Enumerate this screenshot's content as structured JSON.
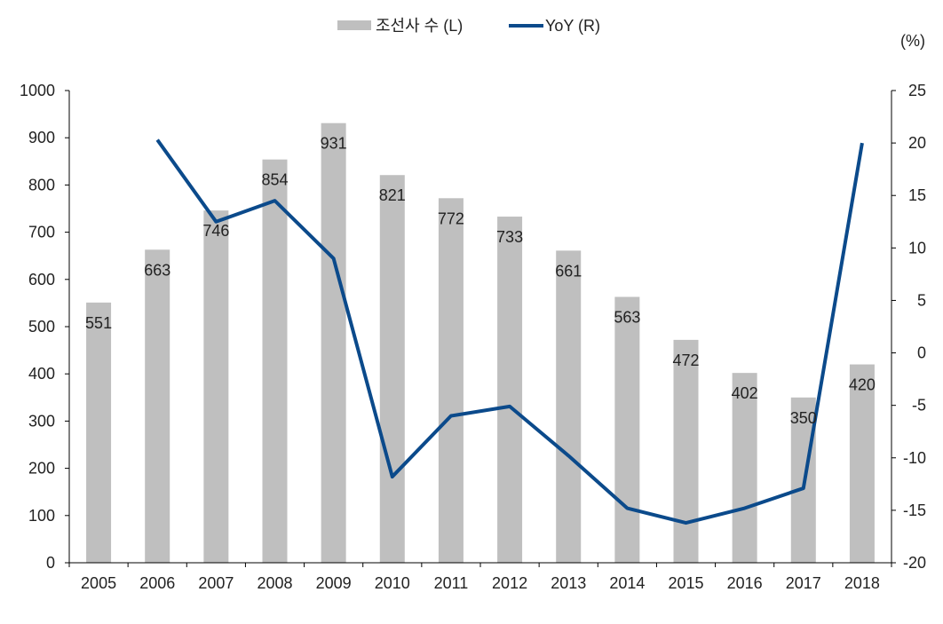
{
  "chart_data": {
    "type": "bar+line",
    "title": "",
    "categories": [
      "2005",
      "2006",
      "2007",
      "2008",
      "2009",
      "2010",
      "2011",
      "2012",
      "2013",
      "2014",
      "2015",
      "2016",
      "2017",
      "2018"
    ],
    "series": [
      {
        "name": "조선사 수 (L)",
        "type": "bar",
        "axis": "left",
        "color": "#bfbfbf",
        "values": [
          551,
          663,
          746,
          854,
          931,
          821,
          772,
          733,
          661,
          563,
          472,
          402,
          350,
          420
        ]
      },
      {
        "name": "YoY (R)",
        "type": "line",
        "axis": "right",
        "color": "#0b4a8b",
        "values": [
          null,
          20.3,
          12.5,
          14.5,
          9.0,
          -11.8,
          -6.0,
          -5.1,
          -9.8,
          -14.8,
          -16.2,
          -14.8,
          -12.9,
          20.0
        ]
      }
    ],
    "left_axis": {
      "min": 0,
      "max": 1000,
      "step": 100,
      "ticks": [
        "0",
        "100",
        "200",
        "300",
        "400",
        "500",
        "600",
        "700",
        "800",
        "900",
        "1000"
      ]
    },
    "right_axis": {
      "min": -20,
      "max": 25,
      "step": 5,
      "unit_label": "(%)",
      "ticks": [
        "-20",
        "-15",
        "-10",
        "-5",
        "0",
        "5",
        "10",
        "15",
        "20",
        "25"
      ]
    },
    "legend_placement": "top-center",
    "grid": false
  }
}
